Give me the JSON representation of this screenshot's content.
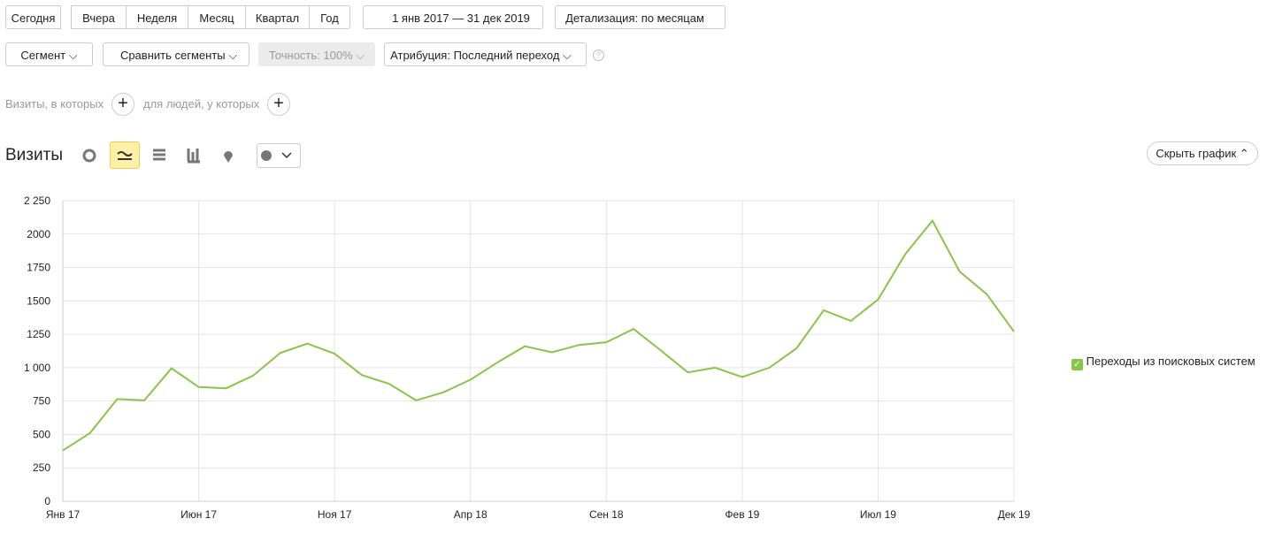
{
  "toolbar": {
    "periods": [
      "Сегодня",
      "Вчера",
      "Неделя",
      "Месяц",
      "Квартал",
      "Год"
    ],
    "date_range": "1 янв 2017 — 31 дек 2019",
    "detail": "Детализация: по месяцам",
    "segment": "Сегмент",
    "compare": "Сравнить сегменты",
    "accuracy": "Точность: 100%",
    "attribution": "Атрибуция: Последний переход"
  },
  "filters": {
    "visits_label": "Визиты, в которых",
    "people_label": "для людей, у которых"
  },
  "report": {
    "title": "Визиты",
    "hide_chart": "Скрыть график"
  },
  "chart_data": {
    "type": "line",
    "categories": [
      "Янв 17",
      null,
      null,
      null,
      null,
      "Июн 17",
      null,
      null,
      null,
      null,
      "Ноя 17",
      null,
      null,
      null,
      null,
      "Апр 18",
      null,
      null,
      null,
      null,
      "Сен 18",
      null,
      null,
      null,
      null,
      "Фев 19",
      null,
      null,
      null,
      null,
      "Июл 19",
      null,
      null,
      null,
      null,
      "Дек 19"
    ],
    "series": [
      {
        "name": "Переходы из поисковых систем",
        "color": "#8bc34a",
        "values": [
          380,
          510,
          765,
          755,
          995,
          855,
          845,
          940,
          1110,
          1180,
          1105,
          945,
          880,
          755,
          815,
          910,
          1040,
          1160,
          1115,
          1170,
          1190,
          1290,
          1130,
          965,
          1000,
          930,
          1000,
          1145,
          1430,
          1350,
          1510,
          1850,
          2100,
          1720,
          1550,
          1270
        ]
      }
    ],
    "ylim": [
      0,
      2250
    ],
    "yticks": [
      0,
      250,
      500,
      750,
      {
        "value": 1000,
        "label": "1 000"
      },
      1250,
      1500,
      1750,
      2000,
      {
        "value": 2250,
        "label": "2 250"
      }
    ],
    "grid": true,
    "legend": "right"
  }
}
